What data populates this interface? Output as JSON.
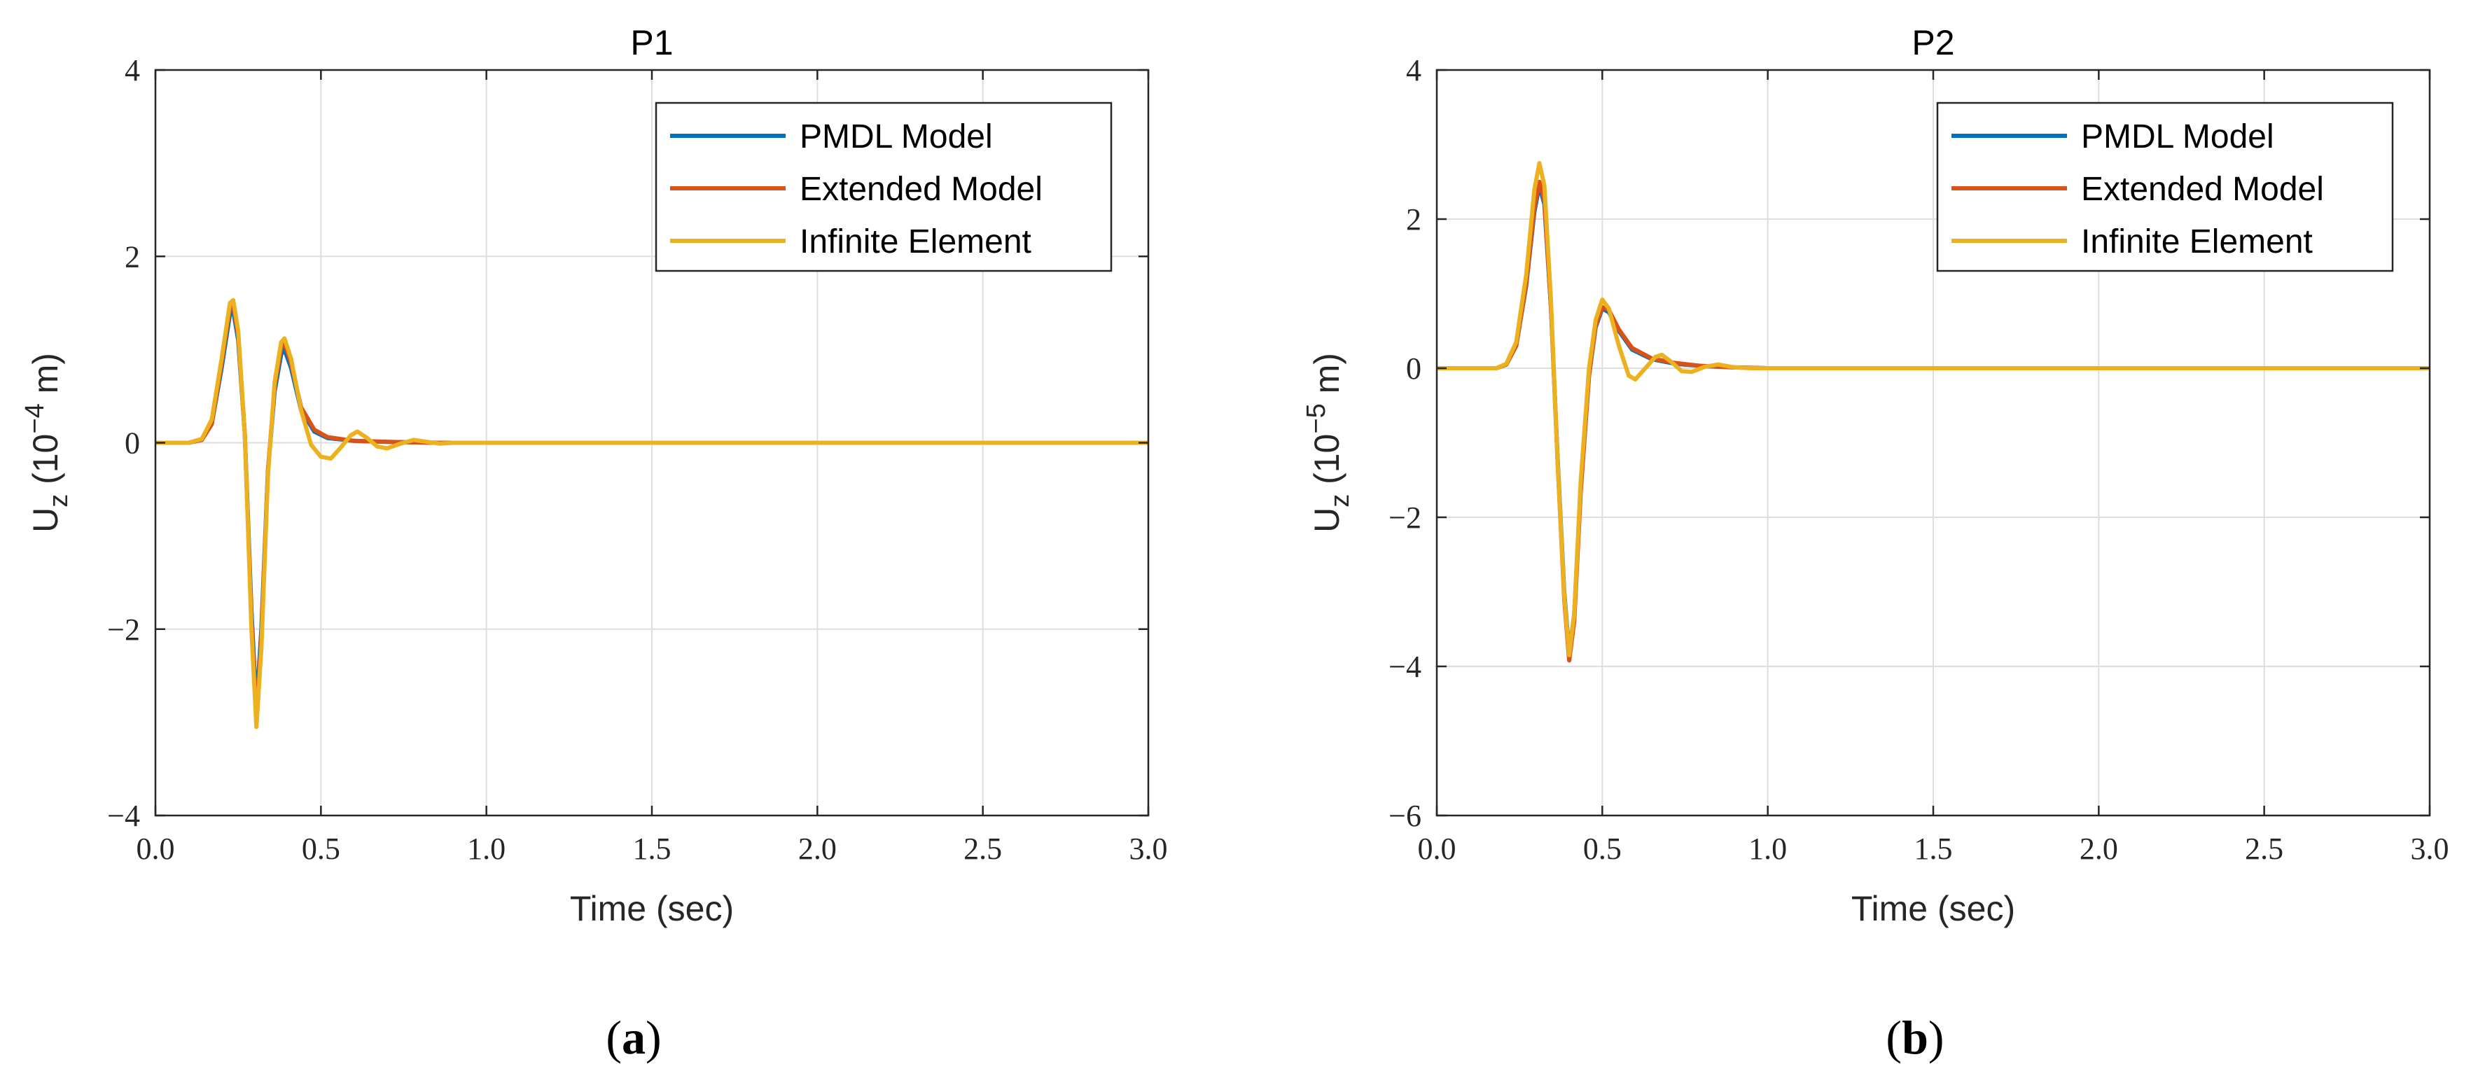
{
  "chart_data": [
    {
      "type": "line",
      "panel_label": {
        "open": "(",
        "letter": "a",
        "close": ")"
      },
      "title": "P1",
      "xlabel": "Time (sec)",
      "ylabel": {
        "base": "U",
        "sub": "z",
        "prefix": " (10",
        "sup": "−4",
        "suffix": " m)"
      },
      "xlim": [
        0,
        3
      ],
      "ylim": [
        -4,
        4
      ],
      "xticks": [
        0,
        0.5,
        1,
        1.5,
        2,
        2.5,
        3
      ],
      "xtick_labels": [
        "0.0",
        "0.5",
        "1.0",
        "1.5",
        "2.0",
        "2.5",
        "3.0"
      ],
      "yticks": [
        -4,
        -2,
        0,
        2,
        4
      ],
      "ytick_labels": [
        "−4",
        "−2",
        "0",
        "2",
        "4"
      ],
      "grid": true,
      "legend_position": "top-right",
      "series": [
        {
          "name": "PMDL Model",
          "color": "#0072BD",
          "points": [
            [
              0,
              0
            ],
            [
              0.1,
              0
            ],
            [
              0.14,
              0.03
            ],
            [
              0.17,
              0.2
            ],
            [
              0.2,
              0.8
            ],
            [
              0.225,
              1.38
            ],
            [
              0.235,
              1.42
            ],
            [
              0.25,
              1.1
            ],
            [
              0.27,
              0.1
            ],
            [
              0.29,
              -1.8
            ],
            [
              0.305,
              -2.85
            ],
            [
              0.32,
              -2.0
            ],
            [
              0.34,
              -0.3
            ],
            [
              0.36,
              0.55
            ],
            [
              0.38,
              0.95
            ],
            [
              0.39,
              1.0
            ],
            [
              0.41,
              0.8
            ],
            [
              0.44,
              0.35
            ],
            [
              0.48,
              0.12
            ],
            [
              0.52,
              0.05
            ],
            [
              0.6,
              0.02
            ],
            [
              0.7,
              0.01
            ],
            [
              0.85,
              0
            ],
            [
              1.0,
              0
            ],
            [
              3.0,
              0
            ]
          ]
        },
        {
          "name": "Extended Model",
          "color": "#D95319",
          "points": [
            [
              0,
              0
            ],
            [
              0.1,
              0
            ],
            [
              0.14,
              0.03
            ],
            [
              0.17,
              0.2
            ],
            [
              0.2,
              0.85
            ],
            [
              0.225,
              1.45
            ],
            [
              0.235,
              1.48
            ],
            [
              0.25,
              1.15
            ],
            [
              0.27,
              0.1
            ],
            [
              0.29,
              -1.9
            ],
            [
              0.305,
              -2.95
            ],
            [
              0.32,
              -2.1
            ],
            [
              0.34,
              -0.3
            ],
            [
              0.36,
              0.6
            ],
            [
              0.38,
              1.02
            ],
            [
              0.39,
              1.07
            ],
            [
              0.41,
              0.85
            ],
            [
              0.44,
              0.38
            ],
            [
              0.48,
              0.14
            ],
            [
              0.52,
              0.06
            ],
            [
              0.6,
              0.02
            ],
            [
              0.7,
              0.01
            ],
            [
              0.85,
              0
            ],
            [
              1.0,
              0
            ],
            [
              3.0,
              0
            ]
          ]
        },
        {
          "name": "Infinite Element",
          "color": "#EDB120",
          "points": [
            [
              0,
              0
            ],
            [
              0.1,
              0
            ],
            [
              0.14,
              0.04
            ],
            [
              0.17,
              0.25
            ],
            [
              0.2,
              0.9
            ],
            [
              0.225,
              1.5
            ],
            [
              0.235,
              1.53
            ],
            [
              0.25,
              1.2
            ],
            [
              0.27,
              0.1
            ],
            [
              0.29,
              -2.0
            ],
            [
              0.305,
              -3.05
            ],
            [
              0.32,
              -2.2
            ],
            [
              0.34,
              -0.35
            ],
            [
              0.36,
              0.65
            ],
            [
              0.38,
              1.08
            ],
            [
              0.39,
              1.12
            ],
            [
              0.41,
              0.9
            ],
            [
              0.44,
              0.35
            ],
            [
              0.47,
              -0.02
            ],
            [
              0.5,
              -0.15
            ],
            [
              0.53,
              -0.17
            ],
            [
              0.56,
              -0.05
            ],
            [
              0.59,
              0.08
            ],
            [
              0.61,
              0.12
            ],
            [
              0.64,
              0.05
            ],
            [
              0.67,
              -0.04
            ],
            [
              0.7,
              -0.06
            ],
            [
              0.74,
              -0.01
            ],
            [
              0.78,
              0.03
            ],
            [
              0.82,
              0.01
            ],
            [
              0.86,
              -0.01
            ],
            [
              0.9,
              0
            ],
            [
              1.0,
              0
            ],
            [
              3.0,
              0
            ]
          ]
        }
      ]
    },
    {
      "type": "line",
      "panel_label": {
        "open": "(",
        "letter": "b",
        "close": ")"
      },
      "title": "P2",
      "xlabel": "Time (sec)",
      "ylabel": {
        "base": "U",
        "sub": "z",
        "prefix": " (10",
        "sup": "−5",
        "suffix": " m)"
      },
      "xlim": [
        0,
        3
      ],
      "ylim": [
        -6,
        4
      ],
      "xticks": [
        0,
        0.5,
        1,
        1.5,
        2,
        2.5,
        3
      ],
      "xtick_labels": [
        "0.0",
        "0.5",
        "1.0",
        "1.5",
        "2.0",
        "2.5",
        "3.0"
      ],
      "yticks": [
        -6,
        -4,
        -2,
        0,
        2,
        4
      ],
      "ytick_labels": [
        "−6",
        "−4",
        "−2",
        "0",
        "2",
        "4"
      ],
      "grid": true,
      "legend_position": "top-right",
      "series": [
        {
          "name": "PMDL Model",
          "color": "#0072BD",
          "points": [
            [
              0,
              0
            ],
            [
              0.18,
              0
            ],
            [
              0.21,
              0.05
            ],
            [
              0.24,
              0.3
            ],
            [
              0.27,
              1.1
            ],
            [
              0.295,
              2.1
            ],
            [
              0.31,
              2.45
            ],
            [
              0.325,
              2.2
            ],
            [
              0.345,
              0.8
            ],
            [
              0.365,
              -1.2
            ],
            [
              0.385,
              -3.0
            ],
            [
              0.4,
              -3.82
            ],
            [
              0.415,
              -3.3
            ],
            [
              0.435,
              -1.6
            ],
            [
              0.46,
              -0.1
            ],
            [
              0.48,
              0.55
            ],
            [
              0.5,
              0.8
            ],
            [
              0.52,
              0.75
            ],
            [
              0.55,
              0.5
            ],
            [
              0.59,
              0.25
            ],
            [
              0.65,
              0.12
            ],
            [
              0.72,
              0.06
            ],
            [
              0.8,
              0.03
            ],
            [
              0.9,
              0.01
            ],
            [
              1.0,
              0
            ],
            [
              3.0,
              0
            ]
          ]
        },
        {
          "name": "Extended Model",
          "color": "#D95319",
          "points": [
            [
              0,
              0
            ],
            [
              0.18,
              0
            ],
            [
              0.21,
              0.05
            ],
            [
              0.24,
              0.3
            ],
            [
              0.27,
              1.12
            ],
            [
              0.295,
              2.15
            ],
            [
              0.31,
              2.5
            ],
            [
              0.325,
              2.25
            ],
            [
              0.345,
              0.82
            ],
            [
              0.365,
              -1.25
            ],
            [
              0.385,
              -3.1
            ],
            [
              0.4,
              -3.92
            ],
            [
              0.415,
              -3.4
            ],
            [
              0.435,
              -1.65
            ],
            [
              0.46,
              -0.1
            ],
            [
              0.48,
              0.57
            ],
            [
              0.5,
              0.82
            ],
            [
              0.52,
              0.78
            ],
            [
              0.55,
              0.52
            ],
            [
              0.59,
              0.27
            ],
            [
              0.65,
              0.13
            ],
            [
              0.72,
              0.07
            ],
            [
              0.8,
              0.03
            ],
            [
              0.9,
              0.01
            ],
            [
              1.0,
              0
            ],
            [
              3.0,
              0
            ]
          ]
        },
        {
          "name": "Infinite Element",
          "color": "#EDB120",
          "points": [
            [
              0,
              0
            ],
            [
              0.18,
              0
            ],
            [
              0.21,
              0.06
            ],
            [
              0.24,
              0.35
            ],
            [
              0.27,
              1.25
            ],
            [
              0.295,
              2.4
            ],
            [
              0.31,
              2.75
            ],
            [
              0.325,
              2.45
            ],
            [
              0.345,
              0.9
            ],
            [
              0.365,
              -1.25
            ],
            [
              0.385,
              -3.05
            ],
            [
              0.4,
              -3.85
            ],
            [
              0.415,
              -3.3
            ],
            [
              0.435,
              -1.5
            ],
            [
              0.46,
              0
            ],
            [
              0.48,
              0.65
            ],
            [
              0.5,
              0.92
            ],
            [
              0.52,
              0.8
            ],
            [
              0.55,
              0.3
            ],
            [
              0.58,
              -0.1
            ],
            [
              0.6,
              -0.15
            ],
            [
              0.63,
              0
            ],
            [
              0.66,
              0.15
            ],
            [
              0.68,
              0.18
            ],
            [
              0.71,
              0.08
            ],
            [
              0.74,
              -0.04
            ],
            [
              0.77,
              -0.05
            ],
            [
              0.81,
              0.02
            ],
            [
              0.85,
              0.05
            ],
            [
              0.9,
              0.01
            ],
            [
              0.95,
              0
            ],
            [
              1.0,
              0
            ],
            [
              3.0,
              0
            ]
          ]
        }
      ]
    }
  ]
}
